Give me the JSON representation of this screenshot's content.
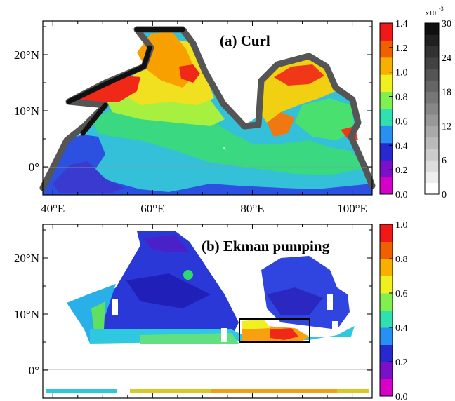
{
  "chart_data": [
    {
      "type": "heatmap",
      "title": "(a) Curl",
      "x_ticks": [
        "40°E",
        "60°E",
        "80°E",
        "100°E"
      ],
      "x_values": [
        40,
        60,
        80,
        100
      ],
      "y_ticks": [
        "0°",
        "10°N",
        "20°N"
      ],
      "y_values": [
        0,
        10,
        20
      ],
      "xlim": [
        38,
        104
      ],
      "ylim": [
        -5,
        26
      ],
      "colorbar": {
        "ticks": [
          "0.0",
          "0.2",
          "0.4",
          "0.6",
          "0.8",
          "1.0",
          "1.2",
          "1.4"
        ],
        "values": [
          0.0,
          0.2,
          0.4,
          0.6,
          0.8,
          1.0,
          1.2,
          1.4
        ],
        "colors": [
          "#d600c8",
          "#7a10c8",
          "#2828d0",
          "#2890f0",
          "#30e0b0",
          "#80f050",
          "#f0f020",
          "#f8b000",
          "#f06000",
          "#f01818"
        ]
      },
      "coast_colorbar": {
        "exponent_label": "x10",
        "exponent": "-3",
        "ticks": [
          "0",
          "6",
          "12",
          "18",
          "24",
          "30"
        ],
        "values": [
          0,
          6,
          12,
          18,
          24,
          30
        ]
      }
    },
    {
      "type": "heatmap",
      "title": "(b) Ekman pumping",
      "x_ticks": [
        "40°E",
        "60°E",
        "80°E",
        "100°E"
      ],
      "x_values": [
        40,
        60,
        80,
        100
      ],
      "y_ticks": [
        "0°",
        "10°N",
        "20°N"
      ],
      "y_values": [
        0,
        10,
        20
      ],
      "xlim": [
        38,
        104
      ],
      "ylim": [
        -5,
        26
      ],
      "colorbar": {
        "ticks": [
          "0.0",
          "0.2",
          "0.4",
          "0.6",
          "0.8",
          "1.0"
        ],
        "values": [
          0.0,
          0.2,
          0.4,
          0.6,
          0.8,
          1.0
        ],
        "colors": [
          "#d600c8",
          "#7a10c8",
          "#2828d0",
          "#2890f0",
          "#30e0b0",
          "#80f050",
          "#f0f020",
          "#f8b000",
          "#f06000",
          "#f01818"
        ]
      },
      "box_region": {
        "lon": [
          76,
          89
        ],
        "lat": [
          5,
          9
        ]
      }
    }
  ]
}
